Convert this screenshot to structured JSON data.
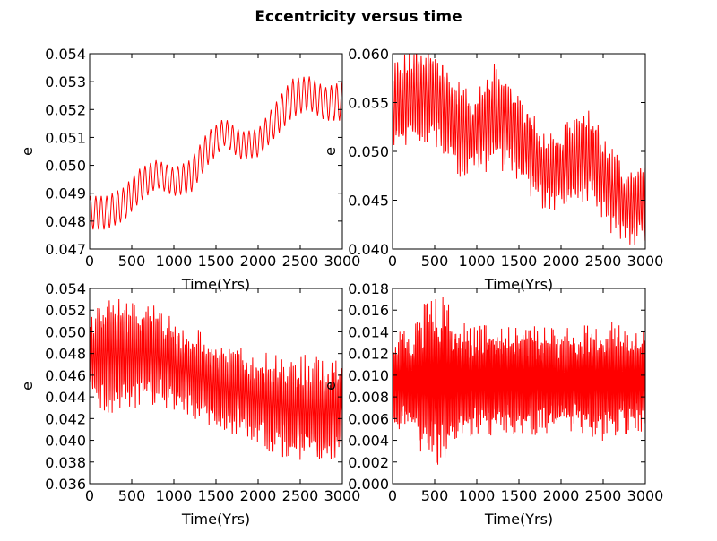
{
  "figure": {
    "title": "Eccentricity versus time"
  },
  "chart_data": [
    {
      "type": "line",
      "title": "",
      "xlabel": "Time(Yrs)",
      "ylabel": "e",
      "xlim": [
        0,
        3000
      ],
      "ylim": [
        0.047,
        0.054
      ],
      "xticks": [
        "0",
        "500",
        "1000",
        "1500",
        "2000",
        "2500",
        "3000"
      ],
      "yticks": [
        "0.047",
        "0.048",
        "0.049",
        "0.050",
        "0.051",
        "0.052",
        "0.053",
        "0.054"
      ],
      "grid": false,
      "series": [
        {
          "color": "#ff0000",
          "x": [
            0,
            200,
            400,
            600,
            800,
            1000,
            1200,
            1400,
            1600,
            1800,
            2000,
            2200,
            2400,
            2600,
            2800,
            3000
          ],
          "y": [
            0.0483,
            0.0483,
            0.0486,
            0.0493,
            0.0497,
            0.0494,
            0.0496,
            0.0506,
            0.0512,
            0.0507,
            0.0508,
            0.0516,
            0.0524,
            0.0526,
            0.0522,
            0.0523
          ],
          "oscillation_amplitude": [
            0.0006,
            0.0006,
            0.0006,
            0.0006,
            0.0005,
            0.0005,
            0.0006,
            0.0006,
            0.0005,
            0.0005,
            0.0005,
            0.0006,
            0.0007,
            0.0006,
            0.0006,
            0.0007
          ],
          "oscillation_period": 65
        }
      ]
    },
    {
      "type": "line",
      "title": "",
      "xlabel": "Time(Yrs)",
      "ylabel": "e",
      "xlim": [
        0,
        3000
      ],
      "ylim": [
        0.04,
        0.06
      ],
      "xticks": [
        "0",
        "500",
        "1000",
        "1500",
        "2000",
        "2500",
        "3000"
      ],
      "yticks": [
        "0.040",
        "0.045",
        "0.050",
        "0.055",
        "0.060"
      ],
      "grid": false,
      "series": [
        {
          "color": "#ff0000",
          "x": [
            0,
            200,
            400,
            600,
            800,
            1000,
            1200,
            1400,
            1600,
            1800,
            2000,
            2200,
            2400,
            2600,
            2800,
            3000
          ],
          "y": [
            0.0545,
            0.0555,
            0.056,
            0.055,
            0.052,
            0.052,
            0.0535,
            0.053,
            0.0505,
            0.048,
            0.048,
            0.0495,
            0.049,
            0.046,
            0.0445,
            0.0445
          ],
          "oscillation_amplitude": [
            0.004,
            0.0042,
            0.0045,
            0.0045,
            0.004,
            0.0035,
            0.0045,
            0.0045,
            0.004,
            0.0035,
            0.0035,
            0.004,
            0.0042,
            0.0038,
            0.0035,
            0.0035
          ],
          "oscillation_period": 28
        }
      ]
    },
    {
      "type": "line",
      "title": "",
      "xlabel": "Time(Yrs)",
      "ylabel": "e",
      "xlim": [
        0,
        3000
      ],
      "ylim": [
        0.036,
        0.054
      ],
      "xticks": [
        "0",
        "500",
        "1000",
        "1500",
        "2000",
        "2500",
        "3000"
      ],
      "yticks": [
        "0.036",
        "0.038",
        "0.040",
        "0.042",
        "0.044",
        "0.046",
        "0.048",
        "0.050",
        "0.052",
        "0.054"
      ],
      "grid": false,
      "series": [
        {
          "color": "#ff0000",
          "x": [
            0,
            200,
            400,
            600,
            800,
            1000,
            1200,
            1400,
            1600,
            1800,
            2000,
            2200,
            2400,
            2600,
            2800,
            3000
          ],
          "y": [
            0.0475,
            0.048,
            0.048,
            0.0478,
            0.0478,
            0.047,
            0.0462,
            0.0455,
            0.0448,
            0.0444,
            0.0438,
            0.0434,
            0.0428,
            0.0428,
            0.0428,
            0.0428
          ],
          "oscillation_amplitude": [
            0.0035,
            0.0045,
            0.0045,
            0.004,
            0.004,
            0.0035,
            0.0035,
            0.0035,
            0.0035,
            0.0035,
            0.0035,
            0.0038,
            0.004,
            0.0042,
            0.004,
            0.004
          ],
          "oscillation_period": 23
        }
      ]
    },
    {
      "type": "line",
      "title": "",
      "xlabel": "Time(Yrs)",
      "ylabel": "e",
      "xlim": [
        0,
        3000
      ],
      "ylim": [
        0.0,
        0.018
      ],
      "xticks": [
        "0",
        "500",
        "1000",
        "1500",
        "2000",
        "2500",
        "3000"
      ],
      "yticks": [
        "0.000",
        "0.002",
        "0.004",
        "0.006",
        "0.008",
        "0.010",
        "0.012",
        "0.014",
        "0.016",
        "0.018"
      ],
      "grid": false,
      "series": [
        {
          "color": "#ff0000",
          "x": [
            0,
            200,
            400,
            600,
            800,
            1000,
            1200,
            1400,
            1600,
            1800,
            2000,
            2200,
            2400,
            2600,
            2800,
            3000
          ],
          "y": [
            0.0095,
            0.0095,
            0.0095,
            0.0095,
            0.0095,
            0.0095,
            0.0095,
            0.0095,
            0.0095,
            0.0095,
            0.0095,
            0.0095,
            0.0095,
            0.0095,
            0.0095,
            0.0095
          ],
          "oscillation_amplitude": [
            0.004,
            0.004,
            0.006,
            0.0065,
            0.0045,
            0.004,
            0.0045,
            0.004,
            0.0045,
            0.004,
            0.004,
            0.004,
            0.0045,
            0.0045,
            0.004,
            0.004
          ],
          "oscillation_period": 17
        }
      ]
    }
  ]
}
